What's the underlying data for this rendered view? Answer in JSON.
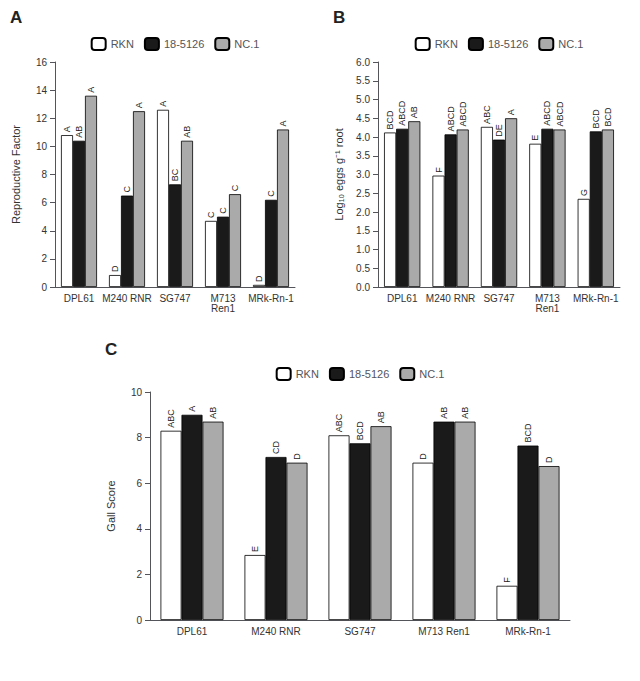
{
  "chart_data": [
    {
      "type": "bar",
      "title": "A",
      "ylabel": "Reproductive Factor",
      "categories": [
        "DPL61",
        "M240 RNR",
        "SG747",
        "M713\nRen1",
        "MRk-Rn-1"
      ],
      "series": [
        {
          "name": "RKN",
          "color": "#ffffff",
          "values": [
            10.8,
            0.85,
            12.6,
            4.7,
            0.15
          ],
          "annotations": [
            "A",
            "D",
            "A",
            "C",
            "D"
          ]
        },
        {
          "name": "18-5126",
          "color": "#1a1a1a",
          "values": [
            10.4,
            6.5,
            7.3,
            5.0,
            6.2
          ],
          "annotations": [
            "AB",
            "C",
            "BC",
            "C",
            "C"
          ]
        },
        {
          "name": "NC.1",
          "color": "#aaaaaa",
          "values": [
            13.6,
            12.5,
            10.4,
            6.6,
            11.2
          ],
          "annotations": [
            "A",
            "A",
            "AB",
            "C",
            "A"
          ]
        }
      ],
      "ylim": [
        0,
        16
      ],
      "yticks": [
        0,
        2,
        4,
        6,
        8,
        10,
        12,
        14,
        16
      ],
      "grid": false,
      "legend": "upper center"
    },
    {
      "type": "bar",
      "title": "B",
      "ylabel": "Log₁₀ eggs g⁻¹ root",
      "categories": [
        "DPL61",
        "M240 RNR",
        "SG747",
        "M713\nRen1",
        "MRk-Rn-1"
      ],
      "series": [
        {
          "name": "RKN",
          "color": "#ffffff",
          "values": [
            4.12,
            2.97,
            4.27,
            3.82,
            2.35
          ],
          "annotations": [
            "BCD",
            "F",
            "ABC",
            "E",
            "G"
          ]
        },
        {
          "name": "18-5126",
          "color": "#1a1a1a",
          "values": [
            4.22,
            4.07,
            3.93,
            4.22,
            4.15
          ],
          "annotations": [
            "ABCD",
            "ABCD",
            "DE",
            "ABCD",
            "BCD"
          ]
        },
        {
          "name": "NC.1",
          "color": "#aaaaaa",
          "values": [
            4.42,
            4.2,
            4.5,
            4.2,
            4.2
          ],
          "annotations": [
            "AB",
            "ABCD",
            "A",
            "ABCD",
            "BCD"
          ]
        }
      ],
      "ylim": [
        0.0,
        6.0
      ],
      "yticks": [
        {
          "value": 0,
          "label": "0.0"
        },
        0.5,
        {
          "value": 1,
          "label": "1.0"
        },
        1.5,
        {
          "value": 2,
          "label": "2.0"
        },
        2.5,
        {
          "value": 3,
          "label": "3.0"
        },
        3.5,
        {
          "value": 4,
          "label": "4.0"
        },
        4.5,
        {
          "value": 5,
          "label": "5.0"
        },
        5.5,
        {
          "value": 6,
          "label": "6.0"
        }
      ],
      "grid": false,
      "legend": "upper center"
    },
    {
      "type": "bar",
      "title": "C",
      "ylabel": "Gall Score",
      "categories": [
        "DPL61",
        "M240 RNR",
        "SG747",
        "M713 Ren1",
        "MRk-Rn-1"
      ],
      "series": [
        {
          "name": "RKN",
          "color": "#ffffff",
          "values": [
            8.3,
            2.85,
            8.1,
            6.9,
            1.5
          ],
          "annotations": [
            "ABC",
            "E",
            "ABC",
            "D",
            "F"
          ]
        },
        {
          "name": "18-5126",
          "color": "#1a1a1a",
          "values": [
            9.0,
            7.15,
            7.75,
            8.7,
            7.65
          ],
          "annotations": [
            "A",
            "CD",
            "BCD",
            "AB",
            "BCD"
          ]
        },
        {
          "name": "NC.1",
          "color": "#aaaaaa",
          "values": [
            8.7,
            6.9,
            8.5,
            8.7,
            6.75
          ],
          "annotations": [
            "AB",
            "D",
            "AB",
            "AB",
            "D"
          ]
        }
      ],
      "ylim": [
        0,
        10
      ],
      "yticks": [
        0,
        2,
        4,
        6,
        8,
        10
      ],
      "grid": false,
      "legend": "upper center"
    }
  ]
}
